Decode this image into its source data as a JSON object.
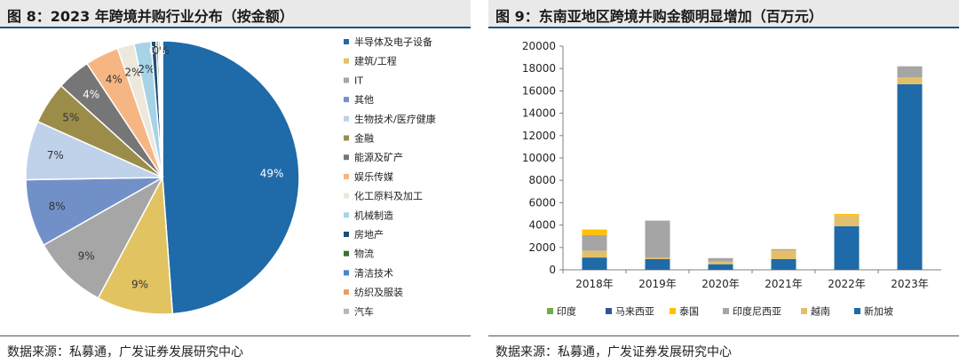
{
  "left_panel": {
    "title": "图 8：2023 年跨境并购行业分布（按金额）",
    "source": "数据来源：私募通，广发证券发展研究中心"
  },
  "right_panel": {
    "title": "图 9：东南亚地区跨境并购金额明显增加（百万元）",
    "source": "数据来源：私募通，广发证券发展研究中心"
  },
  "chart_data": [
    {
      "type": "pie",
      "title": "",
      "slices": [
        {
          "label": "半导体及电子设备",
          "value": 49,
          "display": "49%",
          "color": "#1f6aa8"
        },
        {
          "label": "建筑/工程",
          "value": 9,
          "display": "9%",
          "color": "#e2c362"
        },
        {
          "label": "IT",
          "value": 9,
          "display": "9%",
          "color": "#a6a6a6"
        },
        {
          "label": "其他",
          "value": 8,
          "display": "8%",
          "color": "#7290c8"
        },
        {
          "label": "生物技术/医疗健康",
          "value": 7,
          "display": "7%",
          "color": "#c0d1ea"
        },
        {
          "label": "金融",
          "value": 5,
          "display": "5%",
          "color": "#9b8d49"
        },
        {
          "label": "能源及矿产",
          "value": 4,
          "display": "4%",
          "color": "#767676"
        },
        {
          "label": "娱乐传媒",
          "value": 4,
          "display": "4%",
          "color": "#f6b684"
        },
        {
          "label": "化工原料及加工",
          "value": 2,
          "display": "2%",
          "color": "#ece8dc"
        },
        {
          "label": "机械制造",
          "value": 2,
          "display": "2%",
          "color": "#a6d3e6"
        },
        {
          "label": "房地产",
          "value": 0.6,
          "display": "",
          "color": "#1e4e79"
        },
        {
          "label": "物流",
          "value": 0.25,
          "display": "0%",
          "color": "#3c7030"
        },
        {
          "label": "清洁技术",
          "value": 0.2,
          "display": "",
          "color": "#4a86c8"
        },
        {
          "label": "纺织及服装",
          "value": 0.15,
          "display": "0%",
          "color": "#ef9a6d"
        },
        {
          "label": "汽车",
          "value": 0.15,
          "display": "",
          "color": "#b7b7b7"
        }
      ]
    },
    {
      "type": "bar",
      "stacked": true,
      "title": "",
      "categories": [
        "2018年",
        "2019年",
        "2020年",
        "2021年",
        "2022年",
        "2023年"
      ],
      "series": [
        {
          "name": "印度",
          "color": "#70ad47",
          "values": [
            0,
            0,
            0,
            0,
            0,
            0
          ]
        },
        {
          "name": "马来西亚",
          "color": "#2f5597",
          "values": [
            0,
            0,
            0,
            0,
            0,
            0
          ]
        },
        {
          "name": "泰国",
          "color": "#ffc000",
          "values": [
            500,
            0,
            0,
            0,
            100,
            0
          ]
        },
        {
          "name": "印度尼西亚",
          "color": "#a5a5a5",
          "values": [
            1400,
            3300,
            300,
            100,
            0,
            1000
          ]
        },
        {
          "name": "越南",
          "color": "#e2c06b",
          "values": [
            600,
            150,
            250,
            800,
            1000,
            600
          ]
        },
        {
          "name": "新加坡",
          "color": "#1f6aa8",
          "values": [
            1100,
            950,
            500,
            950,
            3900,
            16600
          ]
        }
      ],
      "ylim": [
        0,
        20000
      ],
      "yticks": [
        "0",
        "2000",
        "4000",
        "6000",
        "8000",
        "10000",
        "12000",
        "14000",
        "16000",
        "18000",
        "20000"
      ],
      "legend_position": "bottom"
    }
  ]
}
